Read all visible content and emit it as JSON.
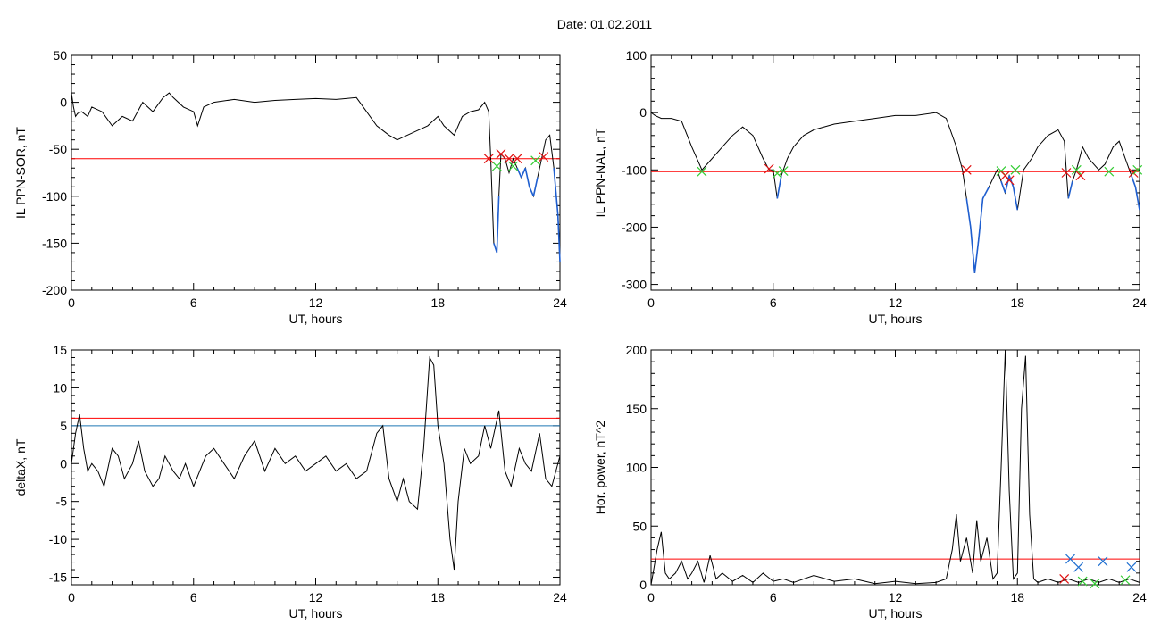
{
  "page": {
    "title": "Date:  01.02.2011"
  },
  "colors": {
    "axis": "#000000",
    "trace": "#000000",
    "threshold_red": "#ff0000",
    "threshold_blue": "#1f77b4",
    "highlight_blue": "#1f5fd0",
    "marker_red": "#e01010",
    "marker_green": "#33cc33",
    "marker_blue": "#1f6fd0"
  },
  "chart_data": [
    {
      "id": "sor",
      "type": "line",
      "ylabel": "IL PPN-SOR, nT",
      "xlabel": "UT, hours",
      "xlim": [
        0,
        24
      ],
      "ylim": [
        -200,
        50
      ],
      "xticks": [
        0,
        6,
        12,
        18,
        24
      ],
      "yticks": [
        -200,
        -150,
        -100,
        -50,
        0,
        50
      ],
      "threshold_red": -60,
      "series": [
        {
          "x": [
            0,
            0.1,
            0.2,
            0.3,
            0.5,
            0.8,
            1.0,
            1.5,
            2.0,
            2.5,
            3.0,
            3.5,
            4.0,
            4.5,
            4.8,
            5.0,
            5.5,
            6.0,
            6.2,
            6.5,
            7.0,
            8.0,
            9.0,
            10,
            11,
            12,
            13,
            14,
            14.5,
            15,
            15.3,
            15.6,
            16,
            16.5,
            17,
            17.5,
            18,
            18.3,
            18.8,
            19.2,
            19.6,
            20,
            20.3,
            20.5,
            20.6,
            20.75,
            20.9,
            21.0,
            21.1,
            21.3,
            21.5,
            21.7,
            21.9,
            22.1,
            22.3,
            22.5,
            22.7,
            22.9,
            23.1,
            23.3,
            23.5,
            23.7,
            23.9,
            24
          ],
          "y": [
            10,
            -5,
            -15,
            -12,
            -10,
            -15,
            -5,
            -10,
            -25,
            -15,
            -20,
            0,
            -10,
            5,
            10,
            5,
            -5,
            -10,
            -25,
            -5,
            0,
            3,
            0,
            2,
            3,
            4,
            3,
            5,
            -10,
            -25,
            -30,
            -35,
            -40,
            -35,
            -30,
            -25,
            -15,
            -25,
            -35,
            -15,
            -10,
            -8,
            0,
            -10,
            -60,
            -150,
            -160,
            -100,
            -55,
            -60,
            -75,
            -60,
            -70,
            -80,
            -70,
            -90,
            -100,
            -80,
            -60,
            -40,
            -35,
            -70,
            -120,
            -170
          ]
        }
      ],
      "markers": [
        {
          "x": 20.5,
          "y": -60,
          "kind": "red"
        },
        {
          "x": 20.9,
          "y": -68,
          "kind": "green"
        },
        {
          "x": 21.1,
          "y": -55,
          "kind": "red"
        },
        {
          "x": 21.5,
          "y": -60,
          "kind": "red"
        },
        {
          "x": 21.7,
          "y": -68,
          "kind": "green"
        },
        {
          "x": 21.9,
          "y": -60,
          "kind": "red"
        },
        {
          "x": 22.8,
          "y": -62,
          "kind": "green"
        },
        {
          "x": 23.2,
          "y": -58,
          "kind": "red"
        }
      ]
    },
    {
      "id": "nal",
      "type": "line",
      "ylabel": "IL PPN-NAL, nT",
      "xlabel": "UT, hours",
      "xlim": [
        0,
        24
      ],
      "ylim": [
        -310,
        100
      ],
      "xticks": [
        0,
        6,
        12,
        18,
        24
      ],
      "yticks": [
        -300,
        -200,
        -100,
        0,
        100
      ],
      "threshold_red": -103,
      "series": [
        {
          "x": [
            0,
            0.2,
            0.5,
            1,
            1.5,
            2.0,
            2.5,
            3.0,
            3.5,
            4.0,
            4.5,
            5.0,
            5.5,
            5.8,
            6.0,
            6.2,
            6.4,
            6.7,
            7,
            7.5,
            8,
            9,
            10,
            11,
            12,
            13,
            14,
            14.5,
            15,
            15.3,
            15.5,
            15.7,
            15.9,
            16.1,
            16.3,
            16.6,
            17,
            17.2,
            17.4,
            17.6,
            17.8,
            18,
            18.3,
            18.7,
            19,
            19.5,
            20,
            20.3,
            20.5,
            20.7,
            20.9,
            21.2,
            21.5,
            22,
            22.3,
            22.7,
            23,
            23.3,
            23.6,
            23.8,
            24
          ],
          "y": [
            0,
            -5,
            -10,
            -10,
            -15,
            -60,
            -100,
            -80,
            -60,
            -40,
            -25,
            -40,
            -80,
            -100,
            -100,
            -150,
            -110,
            -80,
            -60,
            -40,
            -30,
            -20,
            -15,
            -10,
            -5,
            -5,
            0,
            -10,
            -60,
            -100,
            -150,
            -200,
            -280,
            -220,
            -150,
            -130,
            -100,
            -120,
            -140,
            -110,
            -130,
            -170,
            -100,
            -80,
            -60,
            -40,
            -30,
            -50,
            -150,
            -120,
            -100,
            -60,
            -80,
            -100,
            -90,
            -60,
            -50,
            -80,
            -110,
            -130,
            -170
          ]
        }
      ],
      "markers": [
        {
          "x": 2.5,
          "y": -103,
          "kind": "green"
        },
        {
          "x": 5.8,
          "y": -98,
          "kind": "red"
        },
        {
          "x": 6.2,
          "y": -106,
          "kind": "green"
        },
        {
          "x": 6.5,
          "y": -102,
          "kind": "green"
        },
        {
          "x": 15.5,
          "y": -100,
          "kind": "red"
        },
        {
          "x": 17.2,
          "y": -102,
          "kind": "green"
        },
        {
          "x": 17.4,
          "y": -110,
          "kind": "red"
        },
        {
          "x": 17.6,
          "y": -118,
          "kind": "red"
        },
        {
          "x": 17.9,
          "y": -100,
          "kind": "green"
        },
        {
          "x": 20.4,
          "y": -105,
          "kind": "red"
        },
        {
          "x": 20.9,
          "y": -100,
          "kind": "green"
        },
        {
          "x": 21.1,
          "y": -110,
          "kind": "red"
        },
        {
          "x": 22.5,
          "y": -103,
          "kind": "green"
        },
        {
          "x": 23.7,
          "y": -105,
          "kind": "red"
        },
        {
          "x": 23.9,
          "y": -100,
          "kind": "green"
        }
      ]
    },
    {
      "id": "deltax",
      "type": "line",
      "ylabel": "deltaX, nT",
      "xlabel": "UT, hours",
      "xlim": [
        0,
        24
      ],
      "ylim": [
        -16,
        15
      ],
      "xticks": [
        0,
        6,
        12,
        18,
        24
      ],
      "yticks": [
        -15,
        -10,
        -5,
        0,
        5,
        10,
        15
      ],
      "threshold_red": 6,
      "threshold_blue": 5,
      "series": [
        {
          "x": [
            0,
            0.2,
            0.4,
            0.6,
            0.8,
            1.0,
            1.3,
            1.6,
            2.0,
            2.3,
            2.6,
            3.0,
            3.3,
            3.6,
            4.0,
            4.3,
            4.6,
            5.0,
            5.3,
            5.6,
            6.0,
            6.3,
            6.6,
            7.0,
            7.5,
            8.0,
            8.5,
            9.0,
            9.5,
            10,
            10.5,
            11,
            11.5,
            12,
            12.5,
            13,
            13.5,
            14,
            14.5,
            15,
            15.3,
            15.6,
            16,
            16.3,
            16.6,
            17,
            17.3,
            17.6,
            17.8,
            18,
            18.3,
            18.6,
            18.8,
            19,
            19.3,
            19.6,
            20,
            20.3,
            20.6,
            21,
            21.3,
            21.6,
            22,
            22.3,
            22.6,
            23,
            23.3,
            23.6,
            24
          ],
          "y": [
            0,
            4,
            6.5,
            2,
            -1,
            0,
            -1,
            -3,
            2,
            1,
            -2,
            0,
            3,
            -1,
            -3,
            -2,
            1,
            -1,
            -2,
            0,
            -3,
            -1,
            1,
            2,
            0,
            -2,
            1,
            3,
            -1,
            2,
            0,
            1,
            -1,
            0,
            1,
            -1,
            0,
            -2,
            -1,
            4,
            5,
            -2,
            -5,
            -2,
            -5,
            -6,
            2,
            14,
            13,
            5,
            0,
            -10,
            -14,
            -5,
            2,
            0,
            1,
            5,
            2,
            7,
            -1,
            -3,
            2,
            0,
            -1,
            4,
            -2,
            -3,
            1
          ]
        }
      ],
      "markers": []
    },
    {
      "id": "power",
      "type": "line",
      "ylabel": "Hor. power, nT^2",
      "xlabel": "UT, hours",
      "xlim": [
        0,
        24
      ],
      "ylim": [
        0,
        200
      ],
      "xticks": [
        0,
        6,
        12,
        18,
        24
      ],
      "yticks": [
        0,
        50,
        100,
        150,
        200
      ],
      "threshold_red": 22,
      "series": [
        {
          "x": [
            0,
            0.3,
            0.5,
            0.7,
            0.9,
            1.2,
            1.5,
            1.8,
            2.0,
            2.3,
            2.6,
            2.9,
            3.2,
            3.5,
            4.0,
            4.5,
            5.0,
            5.5,
            6.0,
            6.5,
            7.0,
            8.0,
            9.0,
            10,
            11,
            12,
            13,
            14,
            14.5,
            14.8,
            15.0,
            15.2,
            15.5,
            15.8,
            16.0,
            16.2,
            16.5,
            16.8,
            17.0,
            17.2,
            17.4,
            17.6,
            17.8,
            18.0,
            18.2,
            18.4,
            18.6,
            18.8,
            19.0,
            19.5,
            20,
            20.5,
            21,
            21.5,
            22,
            22.5,
            23,
            23.5,
            24
          ],
          "y": [
            0,
            30,
            45,
            10,
            5,
            10,
            20,
            5,
            10,
            20,
            2,
            25,
            5,
            10,
            3,
            8,
            2,
            10,
            3,
            5,
            2,
            8,
            3,
            5,
            1,
            3,
            1,
            2,
            5,
            30,
            60,
            20,
            40,
            10,
            55,
            20,
            40,
            5,
            10,
            100,
            200,
            80,
            5,
            10,
            150,
            195,
            60,
            5,
            2,
            5,
            2,
            5,
            2,
            5,
            2,
            5,
            2,
            5,
            2
          ]
        }
      ],
      "markers": [
        {
          "x": 20.6,
          "y": 22,
          "kind": "blue"
        },
        {
          "x": 21.0,
          "y": 15,
          "kind": "blue"
        },
        {
          "x": 22.2,
          "y": 20,
          "kind": "blue"
        },
        {
          "x": 23.6,
          "y": 15,
          "kind": "blue"
        },
        {
          "x": 20.3,
          "y": 5,
          "kind": "red"
        },
        {
          "x": 21.2,
          "y": 3,
          "kind": "green"
        },
        {
          "x": 21.8,
          "y": 1,
          "kind": "green"
        },
        {
          "x": 23.3,
          "y": 4,
          "kind": "green"
        }
      ]
    }
  ]
}
